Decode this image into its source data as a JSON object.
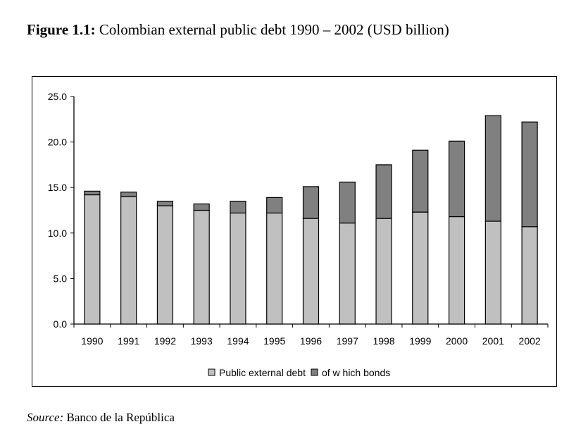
{
  "title": {
    "label": "Figure 1.1:",
    "text": " Colombian external public debt 1990 – 2002 (USD billion)"
  },
  "source": {
    "label": "Source:",
    "text": " Banco de la República"
  },
  "chart_data": {
    "type": "bar",
    "stacked": true,
    "categories": [
      "1990",
      "1991",
      "1992",
      "1993",
      "1994",
      "1995",
      "1996",
      "1997",
      "1998",
      "1999",
      "2000",
      "2001",
      "2002"
    ],
    "series": [
      {
        "name": "Public external debt",
        "color": "#c0c0c0",
        "values": [
          14.2,
          14.0,
          13.0,
          12.5,
          12.2,
          12.2,
          11.6,
          11.1,
          11.6,
          12.3,
          11.8,
          11.3,
          10.7
        ]
      },
      {
        "name": "of w hich bonds",
        "color": "#808080",
        "values": [
          0.4,
          0.5,
          0.5,
          0.7,
          1.3,
          1.7,
          3.5,
          4.5,
          5.9,
          6.8,
          8.3,
          11.6,
          11.5
        ]
      }
    ],
    "ylim": [
      0,
      25
    ],
    "yticks": [
      "0.0",
      "5.0",
      "10.0",
      "15.0",
      "20.0",
      "25.0"
    ],
    "legend": "bottom",
    "grid": false
  }
}
